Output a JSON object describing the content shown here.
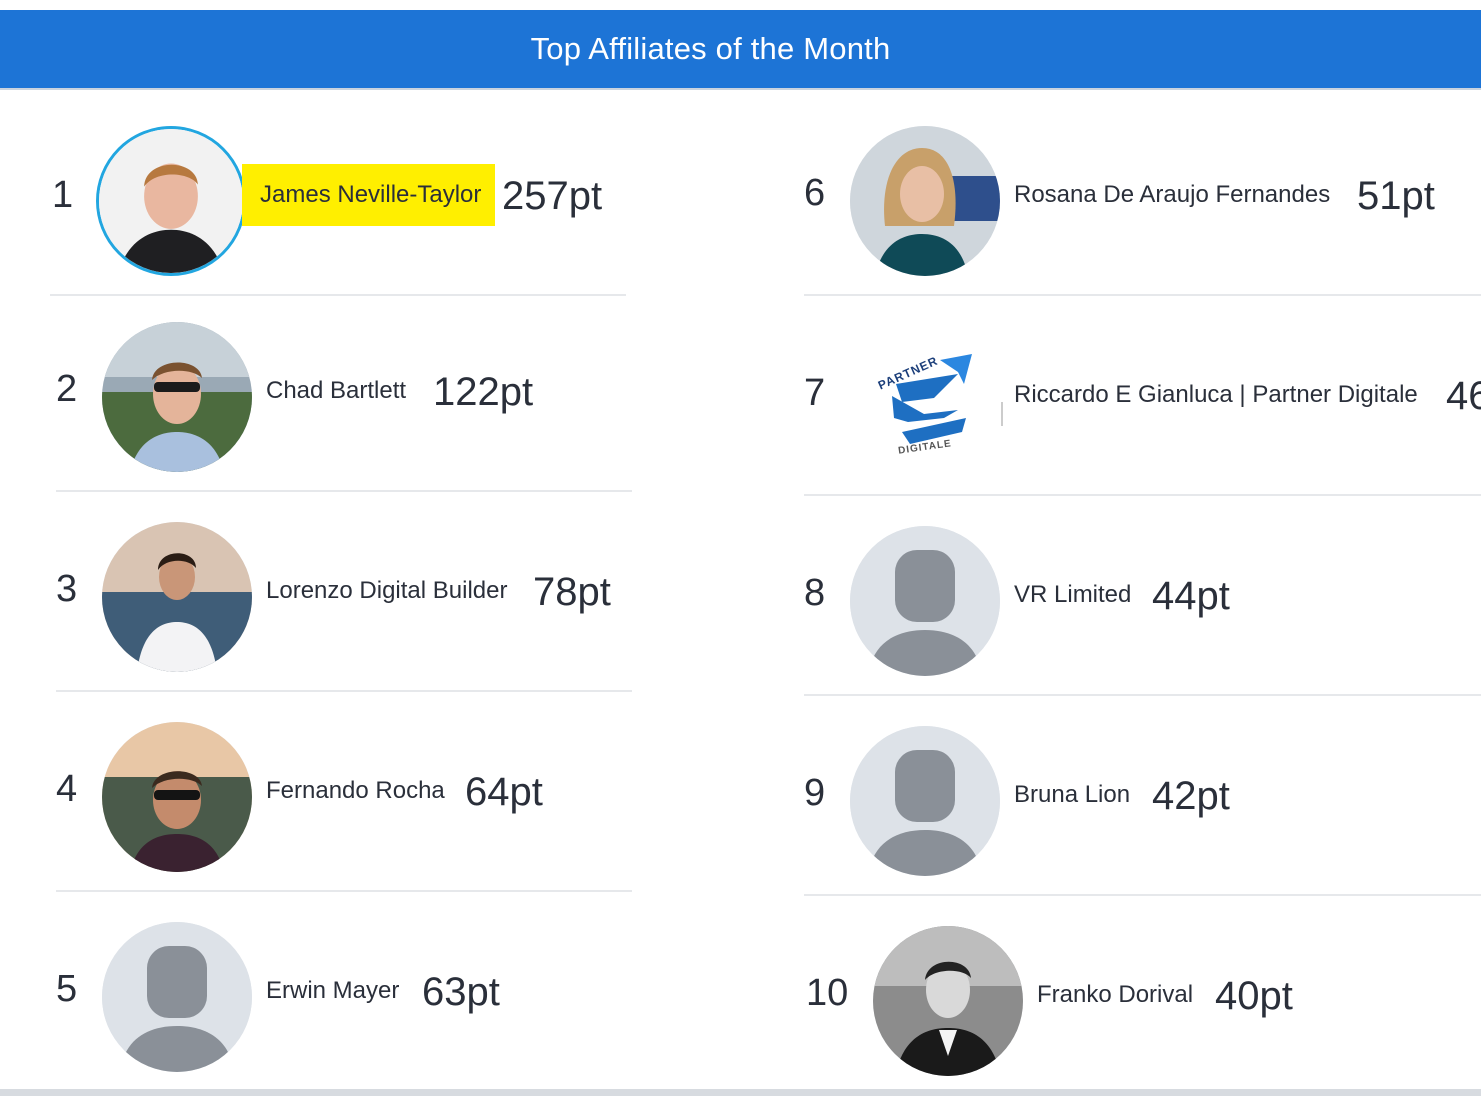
{
  "header": {
    "title": "Top Affiliates of the Month"
  },
  "affiliates": [
    {
      "rank": "1",
      "name": "James Neville-Taylor",
      "points": "257pt",
      "avatar": "photo-avatar"
    },
    {
      "rank": "2",
      "name": "Chad Bartlett",
      "points": "122pt",
      "avatar": "photo-avatar"
    },
    {
      "rank": "3",
      "name": "Lorenzo Digital Builder",
      "points": "78pt",
      "avatar": "photo-avatar"
    },
    {
      "rank": "4",
      "name": "Fernando Rocha",
      "points": "64pt",
      "avatar": "photo-avatar"
    },
    {
      "rank": "5",
      "name": "Erwin Mayer",
      "points": "63pt",
      "avatar": "default-user-icon"
    },
    {
      "rank": "6",
      "name": "Rosana De Araujo Fernandes",
      "points": "51pt",
      "avatar": "photo-avatar"
    },
    {
      "rank": "7",
      "name": "Riccardo E Gianluca | Partner Digitale",
      "points": "46",
      "avatar": "partner-digitale-logo",
      "logo_text_top": "PARTNER",
      "logo_text_bottom": "DIGITALE"
    },
    {
      "rank": "8",
      "name": "VR Limited",
      "points": "44pt",
      "avatar": "default-user-icon"
    },
    {
      "rank": "9",
      "name": "Bruna Lion",
      "points": "42pt",
      "avatar": "default-user-icon"
    },
    {
      "rank": "10",
      "name": "Franko Dorival",
      "points": "40pt",
      "avatar": "photo-avatar"
    }
  ],
  "colors": {
    "header_bg": "#1d74d6",
    "highlight": "#ffef00",
    "avatar_ring": "#22a6e0",
    "placeholder_bg": "#dde2e8",
    "placeholder_fg": "#8a9098"
  }
}
